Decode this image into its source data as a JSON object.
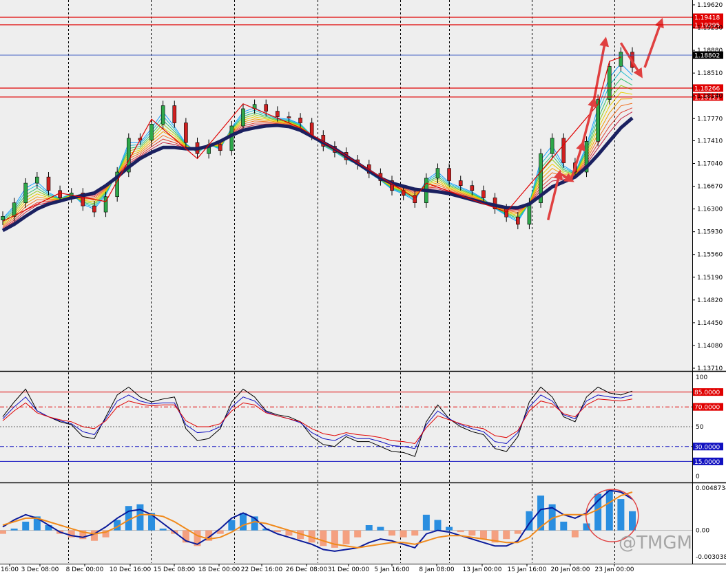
{
  "chart_data": [
    {
      "type": "candlestick",
      "panel": "price",
      "y_ticks": [
        "1.19620",
        "1.19250",
        "1.18880",
        "1.18510",
        "1.18140",
        "1.17770",
        "1.17410",
        "1.17040",
        "1.16670",
        "1.16300",
        "1.15930",
        "1.15560",
        "1.15190",
        "1.14820",
        "1.14450",
        "1.14080",
        "1.13710"
      ],
      "ylim": [
        1.1371,
        1.1962
      ],
      "x_ticks": [
        "16:00",
        "3 Dec 08:00",
        "8 Dec 00:00",
        "10 Dec 16:00",
        "15 Dec 08:00",
        "18 Dec 00:00",
        "22 Dec 16:00",
        "26 Dec 08:00",
        "31 Dec 00:00",
        "5 Jan 16:00",
        "8 Jan 08:00",
        "13 Jan 00:00",
        "15 Jan 16:00",
        "20 Jan 08:00",
        "23 Jan 00:00"
      ],
      "levels": [
        {
          "value": 1.19418,
          "label": "1.19418",
          "color": "#e00000"
        },
        {
          "value": 1.19295,
          "label": "1.19295",
          "color": "#e00000"
        },
        {
          "value": 1.18802,
          "label": "1.18802",
          "color": "#000000"
        },
        {
          "value": 1.18266,
          "label": "1.18266",
          "color": "#e00000"
        },
        {
          "value": 1.18121,
          "label": "1.18121",
          "color": "#e00000"
        }
      ],
      "close": [
        1.1618,
        1.164,
        1.1672,
        1.1682,
        1.166,
        1.1648,
        1.1656,
        1.1635,
        1.1625,
        1.165,
        1.169,
        1.1745,
        1.1742,
        1.1768,
        1.1798,
        1.177,
        1.1738,
        1.172,
        1.1735,
        1.1725,
        1.1765,
        1.1793,
        1.18,
        1.1789,
        1.178,
        1.1778,
        1.177,
        1.175,
        1.1732,
        1.1722,
        1.171,
        1.1702,
        1.1688,
        1.1676,
        1.166,
        1.1652,
        1.164,
        1.168,
        1.1696,
        1.1676,
        1.1668,
        1.166,
        1.1648,
        1.163,
        1.1617,
        1.1605,
        1.164,
        1.172,
        1.1745,
        1.1705,
        1.169,
        1.174,
        1.1808,
        1.1862,
        1.1885,
        1.186
      ],
      "ema_slow": [
        1.1595,
        1.1605,
        1.1618,
        1.163,
        1.1638,
        1.1643,
        1.1648,
        1.1652,
        1.1656,
        1.1668,
        1.1682,
        1.1698,
        1.1712,
        1.1722,
        1.173,
        1.173,
        1.1728,
        1.1728,
        1.1732,
        1.174,
        1.175,
        1.1758,
        1.1762,
        1.1765,
        1.1766,
        1.1764,
        1.1758,
        1.1748,
        1.1738,
        1.1728,
        1.1716,
        1.1704,
        1.1692,
        1.168,
        1.1672,
        1.1667,
        1.1662,
        1.166,
        1.1658,
        1.1655,
        1.165,
        1.1645,
        1.164,
        1.1636,
        1.1632,
        1.1632,
        1.1638,
        1.1652,
        1.1666,
        1.1674,
        1.1682,
        1.1698,
        1.1718,
        1.174,
        1.1762,
        1.1778
      ]
    },
    {
      "type": "line",
      "panel": "oscillator",
      "y_ticks": [
        "100",
        "50",
        "0"
      ],
      "ylim": [
        0,
        100
      ],
      "levels": [
        {
          "value": 85,
          "label": "85.0000",
          "color": "#e00000"
        },
        {
          "value": 70,
          "label": "70.0000",
          "color": "#e00000"
        },
        {
          "value": 30,
          "label": "30.0000",
          "color": "#1010c0"
        },
        {
          "value": 15,
          "label": "15.0000",
          "color": "#1010c0"
        }
      ],
      "series": [
        {
          "color": "#000000",
          "values": [
            60,
            75,
            88,
            66,
            60,
            55,
            52,
            40,
            38,
            60,
            82,
            90,
            80,
            75,
            78,
            80,
            48,
            36,
            38,
            48,
            75,
            88,
            80,
            66,
            62,
            60,
            55,
            40,
            32,
            30,
            40,
            35,
            35,
            30,
            25,
            24,
            20,
            55,
            72,
            58,
            50,
            45,
            42,
            28,
            25,
            40,
            75,
            90,
            80,
            60,
            55,
            80,
            90,
            84,
            82,
            86
          ]
        },
        {
          "color": "#1010c0",
          "values": [
            58,
            70,
            80,
            66,
            60,
            56,
            53,
            45,
            42,
            58,
            76,
            82,
            76,
            73,
            74,
            74,
            52,
            44,
            45,
            50,
            70,
            80,
            76,
            65,
            61,
            58,
            54,
            44,
            38,
            36,
            42,
            38,
            38,
            35,
            31,
            30,
            28,
            52,
            66,
            58,
            52,
            48,
            45,
            35,
            33,
            44,
            70,
            82,
            76,
            62,
            58,
            76,
            82,
            80,
            79,
            82
          ]
        },
        {
          "color": "#e00000",
          "values": [
            56,
            66,
            74,
            64,
            60,
            57,
            55,
            50,
            48,
            56,
            70,
            76,
            73,
            71,
            72,
            72,
            56,
            50,
            50,
            53,
            66,
            74,
            72,
            64,
            61,
            58,
            55,
            48,
            43,
            41,
            44,
            42,
            41,
            39,
            36,
            35,
            33,
            49,
            61,
            57,
            53,
            50,
            48,
            41,
            39,
            46,
            66,
            76,
            73,
            63,
            60,
            72,
            78,
            77,
            76,
            78
          ]
        }
      ]
    },
    {
      "type": "bar",
      "panel": "histogram",
      "y_ticks": [
        "0.0048734",
        "0.00",
        "-0.0030386"
      ],
      "ylim": [
        -0.0030386,
        0.0048734
      ],
      "histogram": [
        -0.0004,
        0.0002,
        0.001,
        0.0016,
        0.0006,
        -0.0004,
        -0.0008,
        -0.001,
        -0.0012,
        -0.0008,
        0.0012,
        0.0028,
        0.003,
        0.002,
        0.0002,
        -0.0004,
        -0.0014,
        -0.0018,
        -0.0012,
        -0.0004,
        0.0012,
        0.002,
        0.0016,
        0.0002,
        -0.0002,
        -0.0006,
        -0.001,
        -0.0014,
        -0.0018,
        -0.002,
        -0.0016,
        -0.0008,
        0.0006,
        0.0004,
        -0.0006,
        -0.0008,
        -0.0006,
        0.0018,
        0.0012,
        0.0004,
        -0.0002,
        -0.0006,
        -0.001,
        -0.0014,
        -0.001,
        -0.0004,
        0.0022,
        0.004,
        0.003,
        0.001,
        -0.0008,
        0.0008,
        0.0042,
        0.0046,
        0.0036,
        0.0022
      ],
      "series": [
        {
          "color": "#0a1a9a",
          "values": [
            0.0004,
            0.0012,
            0.0018,
            0.0014,
            0.0006,
            -0.0002,
            -0.0006,
            -0.0008,
            -0.0004,
            0.0004,
            0.0014,
            0.0022,
            0.0024,
            0.0018,
            0.0008,
            -0.0002,
            -0.0012,
            -0.0016,
            -0.0008,
            0.0002,
            0.0014,
            0.002,
            0.0014,
            0.0002,
            -0.0004,
            -0.0008,
            -0.0012,
            -0.0016,
            -0.0022,
            -0.0024,
            -0.0022,
            -0.002,
            -0.0014,
            -0.001,
            -0.0012,
            -0.0016,
            -0.002,
            -0.0004,
            0.0,
            -0.0002,
            -0.0006,
            -0.001,
            -0.0014,
            -0.0018,
            -0.0018,
            -0.0012,
            0.0008,
            0.0024,
            0.0026,
            0.0018,
            0.0014,
            0.002,
            0.0034,
            0.0046,
            0.0044,
            0.0036
          ]
        },
        {
          "color": "#f08a1c",
          "values": [
            0.0006,
            0.001,
            0.0014,
            0.0014,
            0.001,
            0.0006,
            0.0002,
            -0.0002,
            -0.0004,
            -0.0002,
            0.0004,
            0.0012,
            0.0018,
            0.0018,
            0.0016,
            0.001,
            0.0002,
            -0.0006,
            -0.001,
            -0.0008,
            -0.0002,
            0.0006,
            0.001,
            0.0008,
            0.0004,
            0.0,
            -0.0004,
            -0.0008,
            -0.0012,
            -0.0016,
            -0.0018,
            -0.002,
            -0.0018,
            -0.0016,
            -0.0014,
            -0.0014,
            -0.0016,
            -0.0012,
            -0.0008,
            -0.0006,
            -0.0006,
            -0.0008,
            -0.001,
            -0.0012,
            -0.0014,
            -0.0014,
            -0.0008,
            0.0004,
            0.0014,
            0.0018,
            0.0018,
            0.0018,
            0.0024,
            0.0032,
            0.004,
            0.0044
          ]
        }
      ]
    }
  ],
  "watermark": "@TMGM",
  "colors": {
    "background": "#eeeeee",
    "grid": "#000000",
    "annotation": "#e04040",
    "slow_ma": "#1a2060"
  }
}
